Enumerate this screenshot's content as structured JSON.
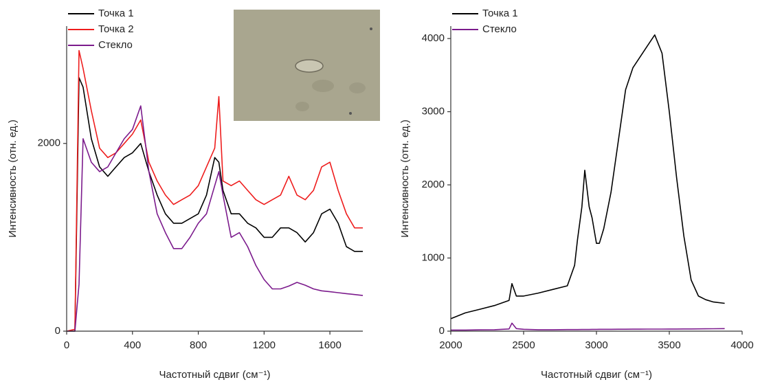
{
  "chart_data": [
    {
      "type": "line",
      "xlabel": "Частотный сдвиг (см⁻¹)",
      "ylabel": "Интенсивность (отн. ед.)",
      "xlim": [
        0,
        1800
      ],
      "xticks": [
        0,
        400,
        800,
        1200,
        1600
      ],
      "ylim": [
        0,
        3250
      ],
      "yticks": [
        0,
        2000
      ],
      "legend": "upper left",
      "x": [
        0,
        50,
        75,
        100,
        150,
        200,
        250,
        300,
        350,
        400,
        450,
        500,
        550,
        600,
        650,
        700,
        750,
        800,
        850,
        900,
        925,
        950,
        1000,
        1050,
        1100,
        1150,
        1200,
        1250,
        1300,
        1350,
        1400,
        1450,
        1500,
        1550,
        1600,
        1650,
        1700,
        1750,
        1800
      ],
      "series": [
        {
          "name": "Точка 1",
          "color": "#000000",
          "values": [
            0,
            0,
            2700,
            2600,
            2050,
            1750,
            1650,
            1750,
            1850,
            1900,
            2000,
            1700,
            1450,
            1250,
            1150,
            1150,
            1200,
            1250,
            1450,
            1850,
            1800,
            1500,
            1250,
            1250,
            1150,
            1100,
            1000,
            1000,
            1100,
            1100,
            1050,
            950,
            1050,
            1250,
            1300,
            1150,
            900,
            850,
            850
          ]
        },
        {
          "name": "Точка 2",
          "color": "#ee1c1c",
          "values": [
            0,
            20,
            2990,
            2800,
            2350,
            1950,
            1850,
            1900,
            2000,
            2100,
            2250,
            1800,
            1600,
            1450,
            1350,
            1400,
            1450,
            1550,
            1750,
            1950,
            2500,
            1600,
            1550,
            1600,
            1500,
            1400,
            1350,
            1400,
            1450,
            1650,
            1450,
            1400,
            1500,
            1750,
            1800,
            1500,
            1250,
            1100,
            1100
          ]
        },
        {
          "name": "Стекло",
          "color": "#7b1a8c",
          "values": [
            0,
            0,
            500,
            2050,
            1800,
            1700,
            1750,
            1900,
            2050,
            2150,
            2400,
            1700,
            1250,
            1050,
            880,
            880,
            1000,
            1150,
            1250,
            1550,
            1700,
            1450,
            1000,
            1050,
            900,
            700,
            550,
            450,
            450,
            480,
            520,
            490,
            450,
            430,
            420,
            410,
            400,
            390,
            380
          ]
        }
      ]
    },
    {
      "type": "line",
      "xlabel": "Частотный сдвиг (см⁻¹)",
      "ylabel": "Интенсивность (отн. ед.)",
      "xlim": [
        2000,
        4000
      ],
      "xticks": [
        2000,
        2500,
        3000,
        3500,
        4000
      ],
      "ylim": [
        0,
        4170
      ],
      "yticks": [
        0,
        1000,
        2000,
        3000,
        4000
      ],
      "legend": "upper left",
      "x": [
        2000,
        2100,
        2200,
        2300,
        2400,
        2420,
        2450,
        2500,
        2600,
        2700,
        2800,
        2850,
        2870,
        2900,
        2920,
        2950,
        2970,
        3000,
        3020,
        3050,
        3100,
        3150,
        3200,
        3250,
        3300,
        3350,
        3400,
        3450,
        3500,
        3550,
        3600,
        3650,
        3700,
        3750,
        3800,
        3880
      ],
      "series": [
        {
          "name": "Точка 1",
          "color": "#000000",
          "values": [
            170,
            250,
            300,
            350,
            420,
            650,
            480,
            480,
            520,
            570,
            620,
            900,
            1250,
            1700,
            2200,
            1700,
            1550,
            1200,
            1200,
            1400,
            1900,
            2600,
            3300,
            3600,
            3750,
            3900,
            4050,
            3800,
            3000,
            2100,
            1300,
            700,
            480,
            430,
            400,
            380
          ]
        },
        {
          "name": "Стекло",
          "color": "#7b1a8c",
          "values": [
            15,
            15,
            18,
            20,
            30,
            110,
            35,
            25,
            20,
            20,
            22,
            22,
            22,
            23,
            23,
            23,
            24,
            24,
            25,
            25,
            25,
            26,
            26,
            27,
            27,
            28,
            28,
            28,
            29,
            29,
            30,
            30,
            31,
            32,
            33,
            35
          ]
        }
      ]
    }
  ]
}
